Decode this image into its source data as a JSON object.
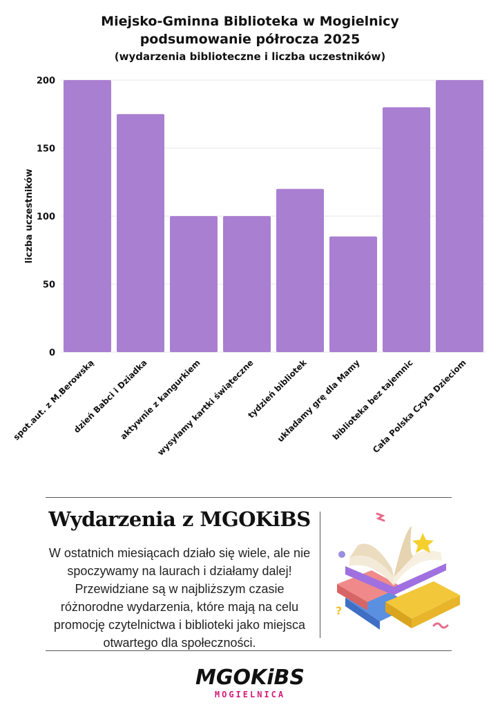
{
  "header": {
    "title_line1": "Miejsko-Gminna Biblioteka w Mogielnicy",
    "title_line2": "podsumowanie półrocza 2025",
    "subtitle": "(wydarzenia biblioteczne i liczba uczestników)"
  },
  "chart_data": {
    "type": "bar",
    "title": "Miejsko-Gminna Biblioteka w Mogielnicy podsumowanie półrocza 2025",
    "subtitle": "(wydarzenia biblioteczne i liczba uczestników)",
    "xlabel": "",
    "ylabel": "liczba uczestników",
    "ylim": [
      0,
      200
    ],
    "yticks": [
      0,
      50,
      100,
      150,
      200
    ],
    "grid": true,
    "legend": "none",
    "bar_color": "#a97fd1",
    "categories": [
      "spot.aut. z M.Berowską",
      "dzień Babci i Dziadka",
      "aktywnie z kangurkiem",
      "wysyłamy kartki świąteczne",
      "tydzień bibliotek",
      "układamy grę dla Mamy",
      "biblioteka bez tajemnic",
      "Cała Polska Czyta Dzieciom"
    ],
    "values": [
      200,
      175,
      100,
      100,
      120,
      85,
      180,
      200
    ]
  },
  "section": {
    "heading": "Wydarzenia z MGOKiBS",
    "text": "W ostatnich miesiącach działo się wiele, ale nie spoczywamy na laurach i działamy dalej! Przewidziane są w najbliższym czasie różnorodne wydarzenia, które mają na celu promocję czytelnictwa i biblioteki jako miejsca otwartego dla społeczności."
  },
  "logo": {
    "top": "MGOKiBS",
    "bottom": "MOGIELNICA",
    "accent_color": "#d6197a"
  }
}
